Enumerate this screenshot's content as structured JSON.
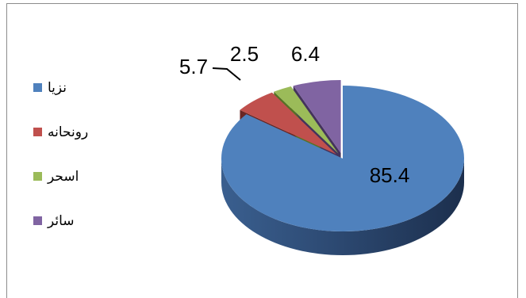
{
  "chart_data": {
    "type": "pie",
    "variant": "3d-exploded",
    "title": "",
    "categories": [
      "نزيا",
      "رونحانه",
      "اسحر",
      "سائر"
    ],
    "values": [
      85.4,
      5.7,
      2.5,
      6.4
    ],
    "data_labels": [
      "85.4",
      "5.7",
      "2.5",
      "6.4"
    ],
    "legend_placement": "left",
    "colors": [
      "#4f81bd",
      "#c0504d",
      "#9bbb59",
      "#8064a2"
    ],
    "dark_colors": [
      "#2a4c77",
      "#6a2624",
      "#577225",
      "#44335c"
    ]
  }
}
